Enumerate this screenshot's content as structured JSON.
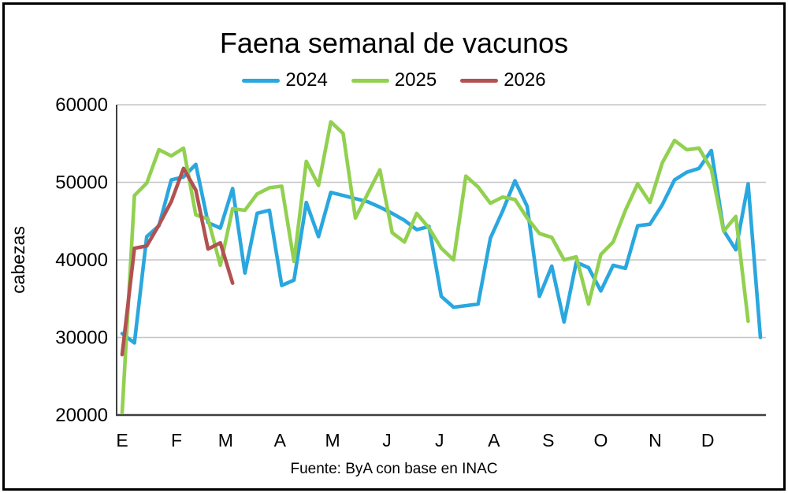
{
  "chart_data": {
    "type": "line",
    "title": "Faena semanal de vacunos",
    "ylabel": "cabezas",
    "xlabel": "",
    "source": "Fuente: ByA con base en INAC",
    "x_unit": "semana (weekly points, Jan-Dec)",
    "month_labels": [
      "E",
      "F",
      "M",
      "A",
      "M",
      "J",
      "J",
      "A",
      "S",
      "O",
      "N",
      "D"
    ],
    "month_start_days": [
      0,
      31,
      59,
      90,
      120,
      151,
      181,
      212,
      243,
      273,
      304,
      334
    ],
    "ylim": [
      20000,
      60000
    ],
    "y_ticks": [
      20000,
      30000,
      40000,
      50000,
      60000
    ],
    "grid": "horizontal",
    "legend_position": "top",
    "series": [
      {
        "name": "2024",
        "color": "#2AA7DE",
        "values": [
          30500,
          29300,
          43000,
          44400,
          50300,
          50700,
          52300,
          44800,
          44100,
          49200,
          38300,
          46000,
          46400,
          36700,
          37400,
          47400,
          43000,
          48700,
          48300,
          47900,
          47500,
          46800,
          46000,
          45100,
          43900,
          44300,
          35300,
          33900,
          34100,
          34300,
          42800,
          46300,
          50200,
          46900,
          35300,
          39200,
          32000,
          39700,
          39000,
          36000,
          39300,
          38900,
          44400,
          44600,
          47100,
          50300,
          51300,
          51800,
          54100,
          43800,
          41300,
          49800,
          30000
        ]
      },
      {
        "name": "2025",
        "color": "#92D050",
        "values": [
          20300,
          48300,
          49900,
          54200,
          53400,
          54400,
          45800,
          45300,
          39300,
          46600,
          46400,
          48500,
          49300,
          49500,
          39800,
          52700,
          49600,
          57800,
          56300,
          45400,
          48500,
          51600,
          43500,
          42300,
          46000,
          44100,
          41500,
          40000,
          50800,
          49400,
          47300,
          48100,
          47800,
          45400,
          43400,
          42900,
          40000,
          40400,
          34300,
          40700,
          42300,
          46400,
          49800,
          47400,
          52500,
          55400,
          54200,
          54400,
          51700,
          43700,
          45600,
          32100
        ]
      },
      {
        "name": "2026",
        "color": "#B25151",
        "values": [
          27800,
          41500,
          41800,
          44500,
          47500,
          51800,
          49000,
          41400,
          42200,
          37000
        ]
      }
    ]
  },
  "colors": {
    "grid": "#C6C6C6",
    "axis": "#3F3F3F",
    "text": "#000000",
    "background": "#FFFFFF",
    "border": "#000000"
  }
}
